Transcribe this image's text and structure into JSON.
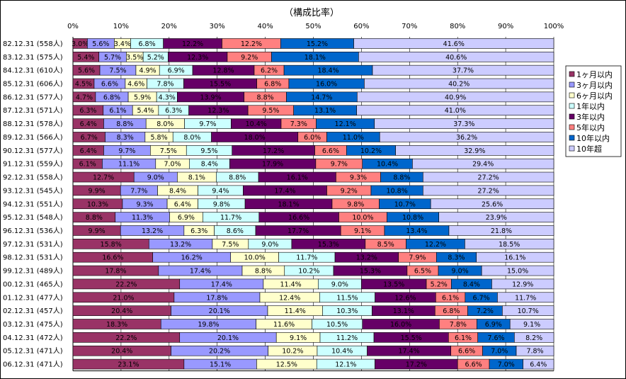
{
  "chart_data": {
    "type": "bar",
    "orientation": "horizontal",
    "stacked": "percent",
    "title": "（構成比率）",
    "xlim": [
      0,
      100
    ],
    "x_ticks": [
      "0%",
      "10%",
      "20%",
      "30%",
      "40%",
      "50%",
      "60%",
      "70%",
      "80%",
      "90%",
      "100%"
    ],
    "grid": true,
    "legend_position": "right",
    "categories": [
      "82.12.31 (558人)",
      "83.12.31 (575人)",
      "84.12.31 (610人)",
      "85.12.31 (606人)",
      "86.12.31 (577人)",
      "87.12.31 (571人)",
      "88.12.31 (578人)",
      "89.12.31 (566人)",
      "90.12.31 (577人)",
      "91.12.31 (559人)",
      "92.12.31 (558人)",
      "93.12.31 (545人)",
      "94.12.31 (551人)",
      "95.12.31 (548人)",
      "96.12.31 (536人)",
      "97.12.31 (531人)",
      "98.12.31 (531人)",
      "99.12.31 (489人)",
      "00.12.31 (465人)",
      "01.12.31 (477人)",
      "02.12.31 (457人)",
      "03.12.31 (475人)",
      "04.12.31 (472人)",
      "05.12.31 (471人)",
      "06.12.31 (471人)"
    ],
    "series": [
      {
        "name": "1ヶ月以内",
        "color": "#993366",
        "values": [
          3.0,
          5.4,
          5.6,
          4.5,
          4.7,
          6.3,
          6.4,
          6.7,
          6.4,
          6.1,
          12.7,
          9.9,
          10.3,
          8.8,
          9.9,
          15.8,
          16.6,
          17.8,
          22.2,
          21.0,
          20.4,
          18.3,
          22.2,
          20.4,
          23.1
        ]
      },
      {
        "name": "3ヶ月以内",
        "color": "#9999ff",
        "values": [
          5.6,
          5.7,
          7.5,
          6.6,
          6.8,
          6.1,
          8.8,
          8.3,
          9.7,
          11.1,
          9.0,
          7.7,
          9.3,
          11.3,
          13.2,
          13.2,
          16.2,
          17.4,
          17.4,
          17.8,
          20.1,
          19.8,
          20.1,
          20.2,
          15.1
        ]
      },
      {
        "name": "6ヶ月以内",
        "color": "#ffffcc",
        "values": [
          3.4,
          3.5,
          4.9,
          4.6,
          5.9,
          5.4,
          8.0,
          5.8,
          7.5,
          7.0,
          8.1,
          8.4,
          6.4,
          6.9,
          6.3,
          7.5,
          10.0,
          8.8,
          11.4,
          12.4,
          11.4,
          11.6,
          9.1,
          10.2,
          12.5
        ]
      },
      {
        "name": "1年以内",
        "color": "#ccffff",
        "values": [
          6.8,
          5.2,
          6.9,
          7.8,
          4.3,
          6.3,
          9.7,
          8.0,
          9.5,
          8.4,
          8.8,
          9.4,
          9.8,
          11.7,
          8.6,
          9.0,
          11.7,
          10.2,
          9.0,
          11.5,
          10.3,
          10.5,
          11.2,
          10.4,
          12.1
        ]
      },
      {
        "name": "3年以内",
        "color": "#660066",
        "values": [
          12.2,
          12.3,
          12.8,
          15.5,
          13.9,
          12.3,
          10.4,
          18.0,
          17.2,
          17.9,
          16.1,
          17.4,
          18.1,
          16.6,
          17.7,
          15.3,
          13.2,
          15.3,
          13.5,
          12.6,
          13.1,
          16.0,
          15.5,
          17.4,
          17.2
        ]
      },
      {
        "name": "5年以内",
        "color": "#ff8080",
        "values": [
          12.2,
          9.2,
          6.2,
          6.8,
          8.8,
          9.5,
          7.3,
          6.0,
          6.6,
          9.7,
          9.3,
          9.2,
          9.8,
          10.0,
          9.1,
          8.5,
          7.9,
          6.5,
          5.2,
          6.1,
          6.8,
          7.8,
          6.1,
          6.6,
          6.6
        ]
      },
      {
        "name": "10年以内",
        "color": "#0066cc",
        "values": [
          15.2,
          18.1,
          18.4,
          16.0,
          14.7,
          13.1,
          12.1,
          11.0,
          10.2,
          10.4,
          8.8,
          10.8,
          10.7,
          10.8,
          13.4,
          12.2,
          8.3,
          9.0,
          8.4,
          6.7,
          7.2,
          6.9,
          7.6,
          7.0,
          7.0
        ]
      },
      {
        "name": "10年超",
        "color": "#ccccff",
        "values": [
          41.6,
          40.6,
          37.7,
          40.2,
          40.9,
          41.0,
          37.3,
          36.2,
          32.9,
          29.4,
          27.2,
          27.2,
          25.6,
          23.9,
          21.8,
          18.5,
          16.1,
          15.0,
          12.9,
          11.7,
          10.7,
          9.1,
          8.2,
          7.8,
          6.4
        ]
      }
    ]
  }
}
